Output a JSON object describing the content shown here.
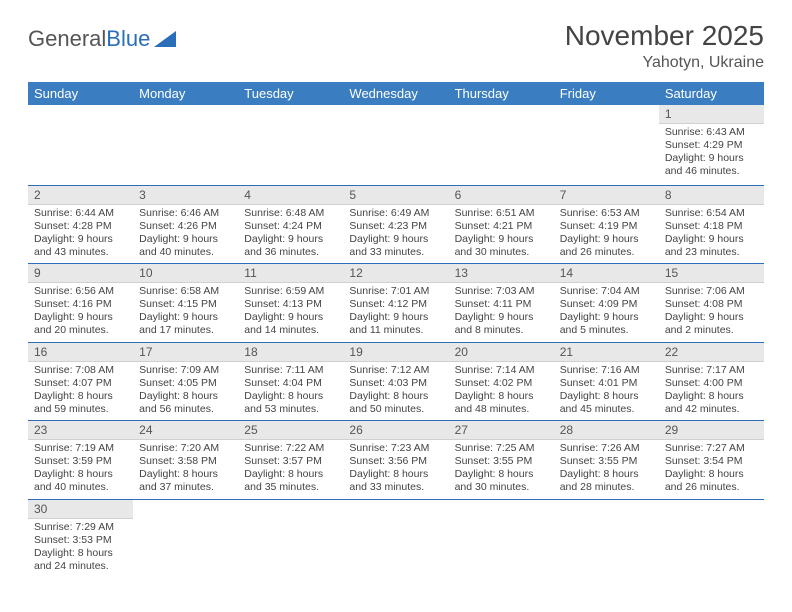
{
  "logo": {
    "text1": "General",
    "text2": "Blue"
  },
  "title": "November 2025",
  "location": "Yahotyn, Ukraine",
  "colors": {
    "header_bg": "#3a7ec1",
    "header_text": "#ffffff",
    "daynum_bg": "#e8e8e8",
    "row_divider": "#2a6db8",
    "text": "#444444",
    "logo_gray": "#555555",
    "logo_blue": "#2a6db8"
  },
  "typography": {
    "title_fontsize": 28,
    "location_fontsize": 16,
    "header_fontsize": 13,
    "daynum_fontsize": 12,
    "body_fontsize": 10.5
  },
  "day_headers": [
    "Sunday",
    "Monday",
    "Tuesday",
    "Wednesday",
    "Thursday",
    "Friday",
    "Saturday"
  ],
  "weeks": [
    [
      null,
      null,
      null,
      null,
      null,
      null,
      {
        "n": "1",
        "sr": "Sunrise: 6:43 AM",
        "ss": "Sunset: 4:29 PM",
        "dl": "Daylight: 9 hours and 46 minutes."
      }
    ],
    [
      {
        "n": "2",
        "sr": "Sunrise: 6:44 AM",
        "ss": "Sunset: 4:28 PM",
        "dl": "Daylight: 9 hours and 43 minutes."
      },
      {
        "n": "3",
        "sr": "Sunrise: 6:46 AM",
        "ss": "Sunset: 4:26 PM",
        "dl": "Daylight: 9 hours and 40 minutes."
      },
      {
        "n": "4",
        "sr": "Sunrise: 6:48 AM",
        "ss": "Sunset: 4:24 PM",
        "dl": "Daylight: 9 hours and 36 minutes."
      },
      {
        "n": "5",
        "sr": "Sunrise: 6:49 AM",
        "ss": "Sunset: 4:23 PM",
        "dl": "Daylight: 9 hours and 33 minutes."
      },
      {
        "n": "6",
        "sr": "Sunrise: 6:51 AM",
        "ss": "Sunset: 4:21 PM",
        "dl": "Daylight: 9 hours and 30 minutes."
      },
      {
        "n": "7",
        "sr": "Sunrise: 6:53 AM",
        "ss": "Sunset: 4:19 PM",
        "dl": "Daylight: 9 hours and 26 minutes."
      },
      {
        "n": "8",
        "sr": "Sunrise: 6:54 AM",
        "ss": "Sunset: 4:18 PM",
        "dl": "Daylight: 9 hours and 23 minutes."
      }
    ],
    [
      {
        "n": "9",
        "sr": "Sunrise: 6:56 AM",
        "ss": "Sunset: 4:16 PM",
        "dl": "Daylight: 9 hours and 20 minutes."
      },
      {
        "n": "10",
        "sr": "Sunrise: 6:58 AM",
        "ss": "Sunset: 4:15 PM",
        "dl": "Daylight: 9 hours and 17 minutes."
      },
      {
        "n": "11",
        "sr": "Sunrise: 6:59 AM",
        "ss": "Sunset: 4:13 PM",
        "dl": "Daylight: 9 hours and 14 minutes."
      },
      {
        "n": "12",
        "sr": "Sunrise: 7:01 AM",
        "ss": "Sunset: 4:12 PM",
        "dl": "Daylight: 9 hours and 11 minutes."
      },
      {
        "n": "13",
        "sr": "Sunrise: 7:03 AM",
        "ss": "Sunset: 4:11 PM",
        "dl": "Daylight: 9 hours and 8 minutes."
      },
      {
        "n": "14",
        "sr": "Sunrise: 7:04 AM",
        "ss": "Sunset: 4:09 PM",
        "dl": "Daylight: 9 hours and 5 minutes."
      },
      {
        "n": "15",
        "sr": "Sunrise: 7:06 AM",
        "ss": "Sunset: 4:08 PM",
        "dl": "Daylight: 9 hours and 2 minutes."
      }
    ],
    [
      {
        "n": "16",
        "sr": "Sunrise: 7:08 AM",
        "ss": "Sunset: 4:07 PM",
        "dl": "Daylight: 8 hours and 59 minutes."
      },
      {
        "n": "17",
        "sr": "Sunrise: 7:09 AM",
        "ss": "Sunset: 4:05 PM",
        "dl": "Daylight: 8 hours and 56 minutes."
      },
      {
        "n": "18",
        "sr": "Sunrise: 7:11 AM",
        "ss": "Sunset: 4:04 PM",
        "dl": "Daylight: 8 hours and 53 minutes."
      },
      {
        "n": "19",
        "sr": "Sunrise: 7:12 AM",
        "ss": "Sunset: 4:03 PM",
        "dl": "Daylight: 8 hours and 50 minutes."
      },
      {
        "n": "20",
        "sr": "Sunrise: 7:14 AM",
        "ss": "Sunset: 4:02 PM",
        "dl": "Daylight: 8 hours and 48 minutes."
      },
      {
        "n": "21",
        "sr": "Sunrise: 7:16 AM",
        "ss": "Sunset: 4:01 PM",
        "dl": "Daylight: 8 hours and 45 minutes."
      },
      {
        "n": "22",
        "sr": "Sunrise: 7:17 AM",
        "ss": "Sunset: 4:00 PM",
        "dl": "Daylight: 8 hours and 42 minutes."
      }
    ],
    [
      {
        "n": "23",
        "sr": "Sunrise: 7:19 AM",
        "ss": "Sunset: 3:59 PM",
        "dl": "Daylight: 8 hours and 40 minutes."
      },
      {
        "n": "24",
        "sr": "Sunrise: 7:20 AM",
        "ss": "Sunset: 3:58 PM",
        "dl": "Daylight: 8 hours and 37 minutes."
      },
      {
        "n": "25",
        "sr": "Sunrise: 7:22 AM",
        "ss": "Sunset: 3:57 PM",
        "dl": "Daylight: 8 hours and 35 minutes."
      },
      {
        "n": "26",
        "sr": "Sunrise: 7:23 AM",
        "ss": "Sunset: 3:56 PM",
        "dl": "Daylight: 8 hours and 33 minutes."
      },
      {
        "n": "27",
        "sr": "Sunrise: 7:25 AM",
        "ss": "Sunset: 3:55 PM",
        "dl": "Daylight: 8 hours and 30 minutes."
      },
      {
        "n": "28",
        "sr": "Sunrise: 7:26 AM",
        "ss": "Sunset: 3:55 PM",
        "dl": "Daylight: 8 hours and 28 minutes."
      },
      {
        "n": "29",
        "sr": "Sunrise: 7:27 AM",
        "ss": "Sunset: 3:54 PM",
        "dl": "Daylight: 8 hours and 26 minutes."
      }
    ],
    [
      {
        "n": "30",
        "sr": "Sunrise: 7:29 AM",
        "ss": "Sunset: 3:53 PM",
        "dl": "Daylight: 8 hours and 24 minutes."
      },
      null,
      null,
      null,
      null,
      null,
      null
    ]
  ]
}
